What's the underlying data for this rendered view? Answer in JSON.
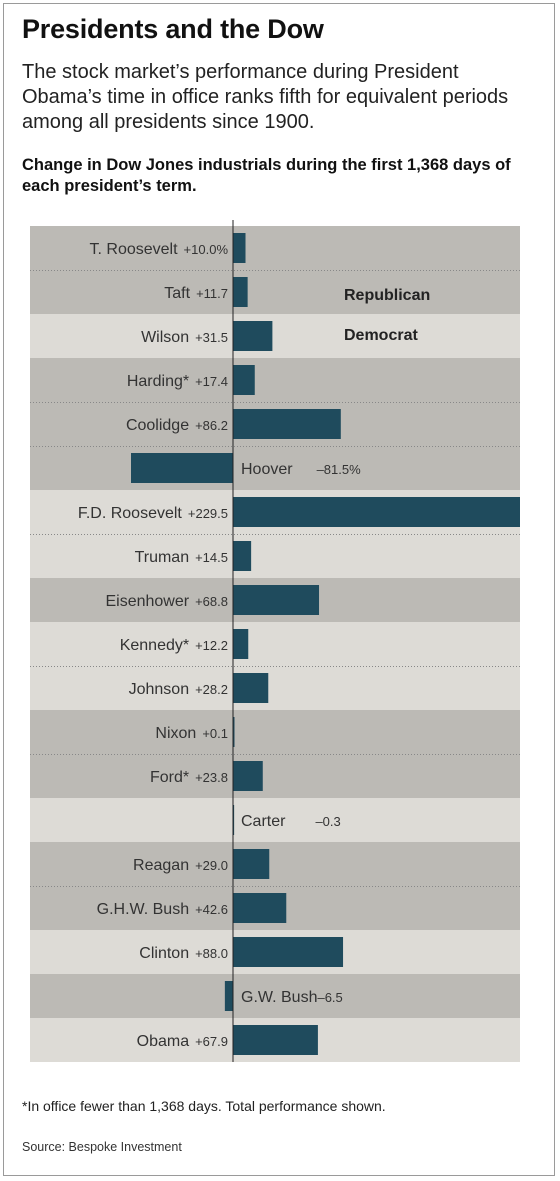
{
  "header": {
    "title": "Presidents and the Dow",
    "subtitle": "The stock market’s performance during President Obama’s time in office ranks fifth for equivalent periods among all presidents since 1900.",
    "chart_heading": "Change in Dow Jones industrials during the first 1,368 days of each president’s term."
  },
  "legend": {
    "republican": "Republican",
    "democrat": "Democrat"
  },
  "colors": {
    "bar": "#1f4b5d",
    "republican_band": "#bcbab5",
    "democrat_band": "#dddbd6",
    "separator": "#888888",
    "axis": "#222222"
  },
  "chart_data": {
    "type": "bar",
    "orientation": "horizontal",
    "title": "Change in Dow Jones industrials during the first 1,368 days of each president’s term.",
    "unit": "%",
    "categories": [
      "T. Roosevelt",
      "Taft",
      "Wilson",
      "Harding*",
      "Coolidge",
      "Hoover",
      "F.D. Roosevelt",
      "Truman",
      "Eisenhower",
      "Kennedy*",
      "Johnson",
      "Nixon",
      "Ford*",
      "Carter",
      "Reagan",
      "G.H.W. Bush",
      "Clinton",
      "G.W. Bush",
      "Obama"
    ],
    "values": [
      10.0,
      11.7,
      31.5,
      17.4,
      86.2,
      -81.5,
      229.5,
      14.5,
      68.8,
      12.2,
      28.2,
      0.1,
      23.8,
      -0.3,
      29.0,
      42.6,
      88.0,
      -6.5,
      67.9
    ],
    "value_labels": [
      "+10.0%",
      "+11.7",
      "+31.5",
      "+17.4",
      "+86.2",
      "–81.5%",
      "+229.5",
      "+14.5",
      "+68.8",
      "+12.2",
      "+28.2",
      "+0.1",
      "+23.8",
      "–0.3",
      "+29.0",
      "+42.6",
      "+88.0",
      "–6.5",
      "+67.9"
    ],
    "party": [
      "Republican",
      "Republican",
      "Democrat",
      "Republican",
      "Republican",
      "Republican",
      "Democrat",
      "Democrat",
      "Republican",
      "Democrat",
      "Democrat",
      "Republican",
      "Republican",
      "Democrat",
      "Republican",
      "Republican",
      "Democrat",
      "Republican",
      "Democrat"
    ],
    "xlim": [
      -81.5,
      229.5
    ]
  },
  "footnote": "*In office fewer than 1,368 days. Total performance shown.",
  "source": "Source: Bespoke Investment"
}
